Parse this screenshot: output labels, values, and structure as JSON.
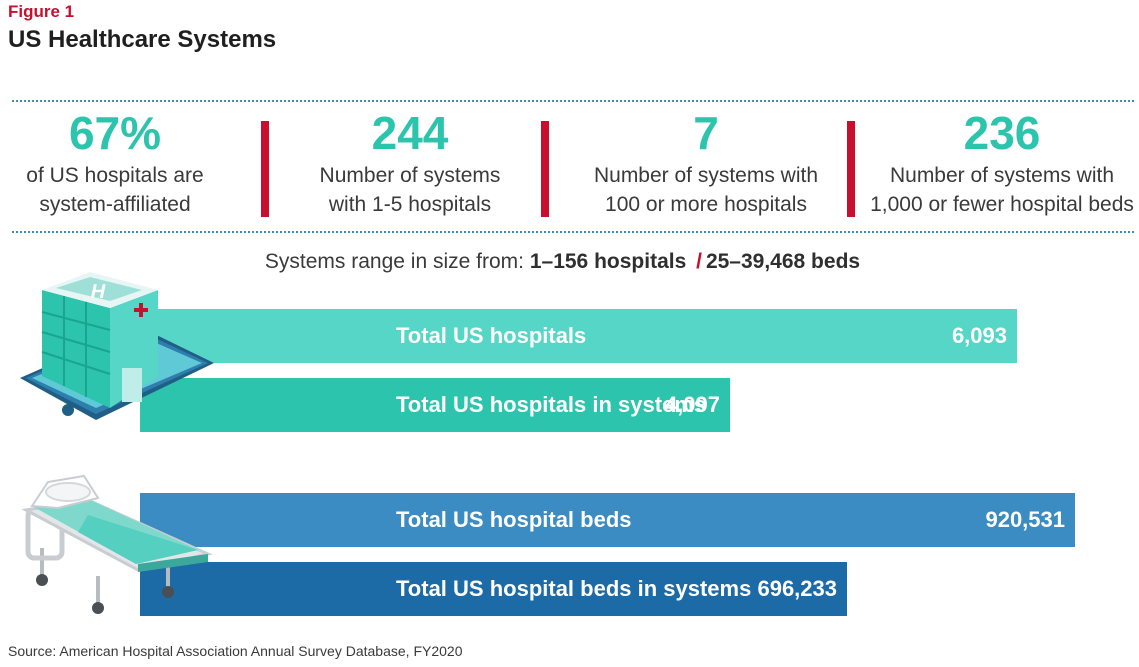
{
  "figure": {
    "label": "Figure 1",
    "title": "US Healthcare Systems"
  },
  "stats": [
    {
      "value": "67%",
      "line1": "of US hospitals are",
      "line2": "system-affiliated"
    },
    {
      "value": "244",
      "line1": "Number of systems",
      "line2": "with 1-5 hospitals"
    },
    {
      "value": "7",
      "line1": "Number of systems with",
      "line2": "100 or more hospitals"
    },
    {
      "value": "236",
      "line1": "Number of systems with",
      "line2": "1,000 or fewer hospital beds"
    }
  ],
  "range": {
    "prefix": "Systems range in size from:",
    "hospitals": "1–156 hospitals",
    "separator": "/",
    "beds": "25–39,468 beds"
  },
  "chart_data": {
    "type": "bar",
    "orientation": "horizontal",
    "groups": [
      {
        "name": "hospitals",
        "icon": "hospital-building-icon",
        "categories": [
          "Total US hospitals",
          "Total US hospitals in systems"
        ],
        "values": [
          6093,
          4097
        ],
        "labels": [
          "6,093",
          "4,097"
        ],
        "colors": [
          "#55d6c6",
          "#2cc4ad"
        ]
      },
      {
        "name": "beds",
        "icon": "hospital-bed-icon",
        "categories": [
          "Total US hospital beds",
          "Total US hospital beds in systems"
        ],
        "values": [
          920531,
          696233
        ],
        "labels": [
          "920,531",
          "696,233"
        ],
        "colors": [
          "#3a8cc2",
          "#1c6aa6"
        ]
      }
    ]
  },
  "source": "Source: American Hospital Association Annual Survey Database, FY2020",
  "colors": {
    "accent_red": "#c8102e",
    "teal": "#2cc4ad",
    "blue": "#1c6aa6"
  }
}
